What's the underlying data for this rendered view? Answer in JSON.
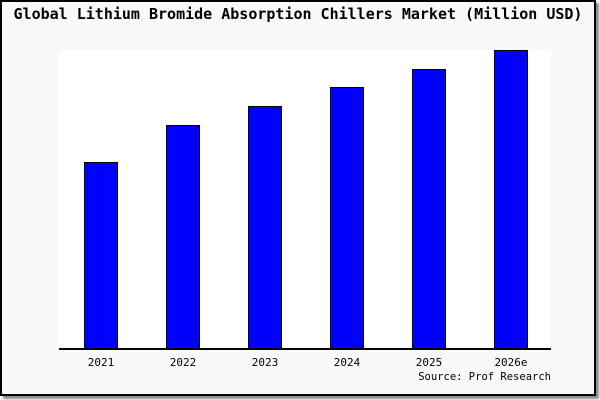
{
  "chart_data": {
    "type": "bar",
    "title": "Global Lithium Bromide Absorption Chillers Market (Million USD)",
    "unit": "Million USD",
    "categories": [
      "2021",
      "2022",
      "2023",
      "2024",
      "2025",
      "2026e"
    ],
    "values_pct_of_max": [
      62.6,
      74.9,
      81.4,
      87.6,
      93.7,
      100.0
    ],
    "xlabel": "",
    "ylabel": "",
    "value_axis_visible": false,
    "grid": false,
    "legend": null,
    "bar_color": "#0000ff",
    "bar_border_color": "#000000",
    "source_note": "Source: Prof Research"
  },
  "colors": {
    "figure_background": "#f9f9f9",
    "plot_background": "#ffffff",
    "axis_line": "#000000",
    "frame_border": "#000000",
    "frame_shadow": "#8c8c8c",
    "text": "#000000"
  }
}
